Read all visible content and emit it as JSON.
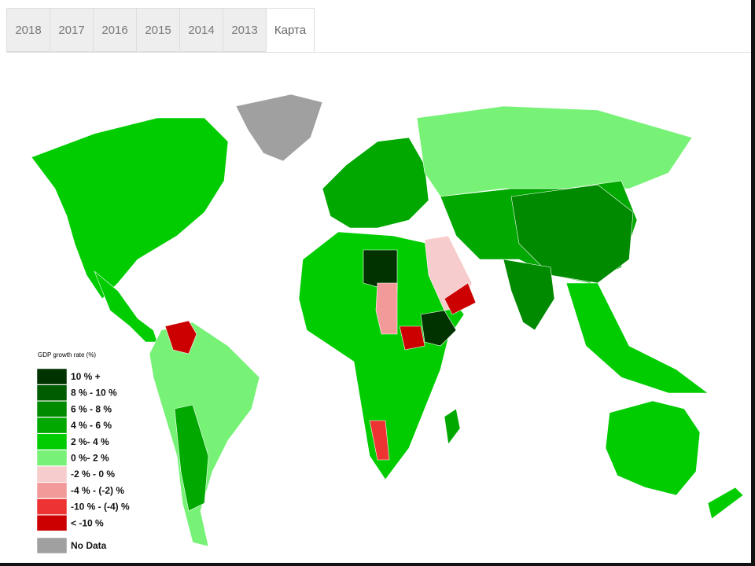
{
  "tabs": [
    "2018",
    "2017",
    "2016",
    "2015",
    "2014",
    "2013",
    "Карта"
  ],
  "active_tab": 6,
  "map": {
    "legend": {
      "title": "GDP growth rate (%)",
      "items": [
        {
          "label": "10 % +",
          "color": "#003300"
        },
        {
          "label": "8 % - 10 %",
          "color": "#005c00"
        },
        {
          "label": "6 % - 8 %",
          "color": "#008a00"
        },
        {
          "label": "4 % - 6 %",
          "color": "#00a800"
        },
        {
          "label": "2 %- 4 %",
          "color": "#00cc00"
        },
        {
          "label": "0 %- 2 %",
          "color": "#77f277"
        },
        {
          "label": "-2 % - 0 %",
          "color": "#f7cccc"
        },
        {
          "label": "-4 % - (-2) %",
          "color": "#f29999"
        },
        {
          "label": "-10 % - (-4) %",
          "color": "#ee3333"
        },
        {
          "label": "< -10 %",
          "color": "#cc0000"
        },
        {
          "label": "No Data",
          "color": "#a0a0a0"
        }
      ]
    }
  }
}
